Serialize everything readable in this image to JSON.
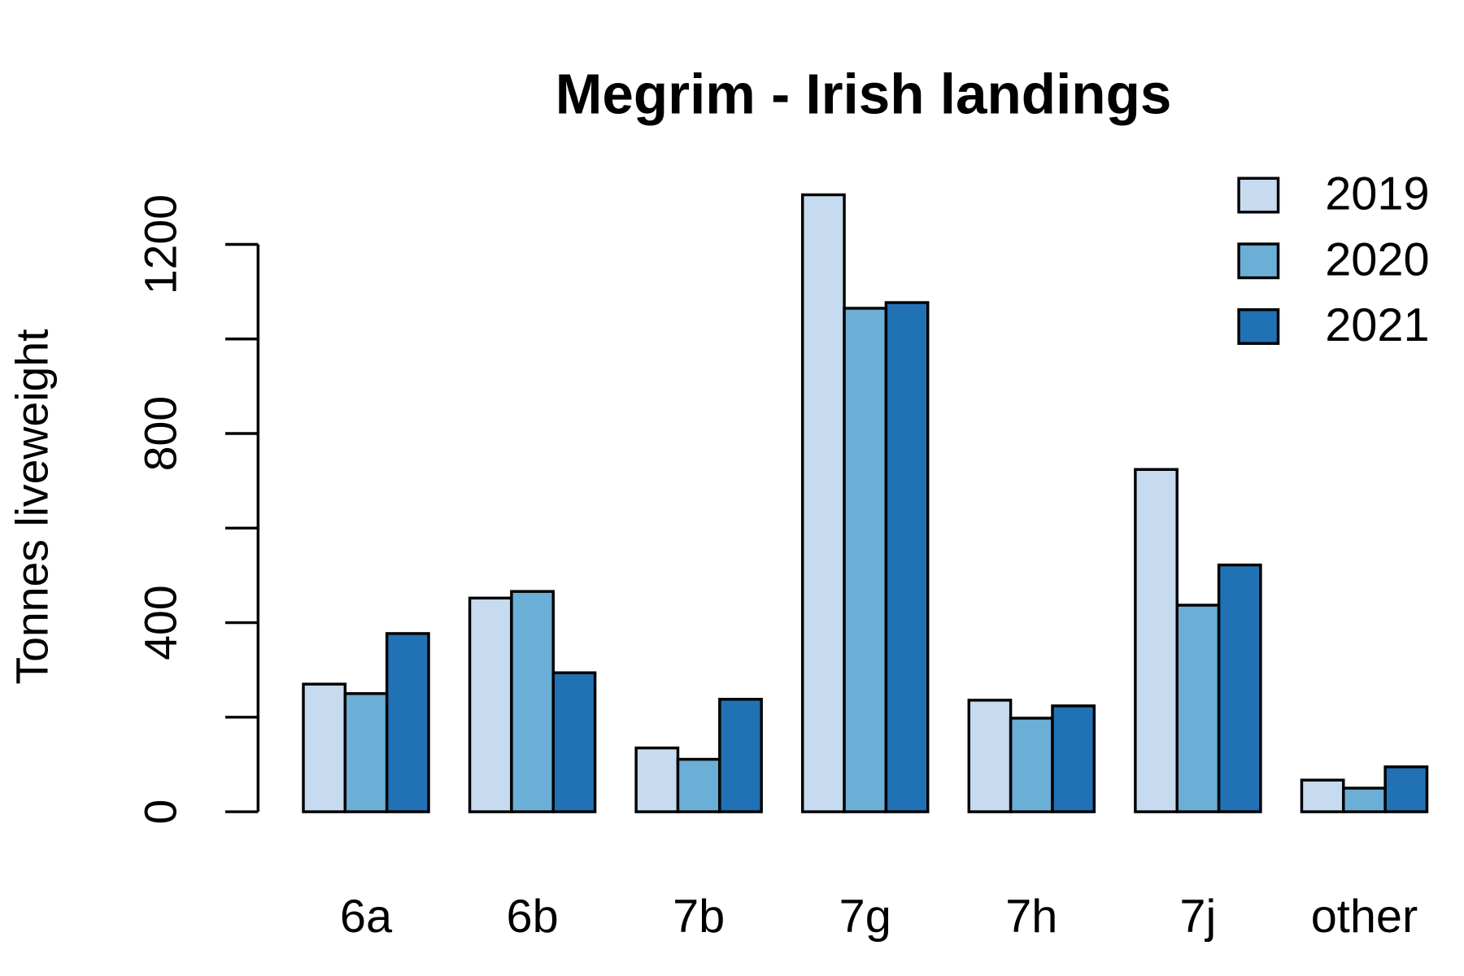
{
  "chart_data": {
    "type": "bar",
    "title": "Megrim - Irish landings",
    "y_label": "Tonnes liveweight",
    "categories": [
      "6a",
      "6b",
      "7b",
      "7g",
      "7h",
      "7j",
      "other"
    ],
    "series": [
      {
        "name": "2019",
        "color": "#c6dbef",
        "values": [
          270,
          452,
          135,
          1305,
          236,
          724,
          67
        ]
      },
      {
        "name": "2020",
        "color": "#6baed6",
        "values": [
          250,
          466,
          111,
          1065,
          198,
          437,
          50
        ]
      },
      {
        "name": "2021",
        "color": "#2171b5",
        "values": [
          377,
          294,
          238,
          1077,
          224,
          522,
          95
        ]
      }
    ],
    "ylim": [
      0,
      1320
    ],
    "yticks": [
      0,
      400,
      800,
      1200
    ],
    "minor_yticks": [
      200,
      600,
      1000
    ],
    "legend": "top-right"
  }
}
